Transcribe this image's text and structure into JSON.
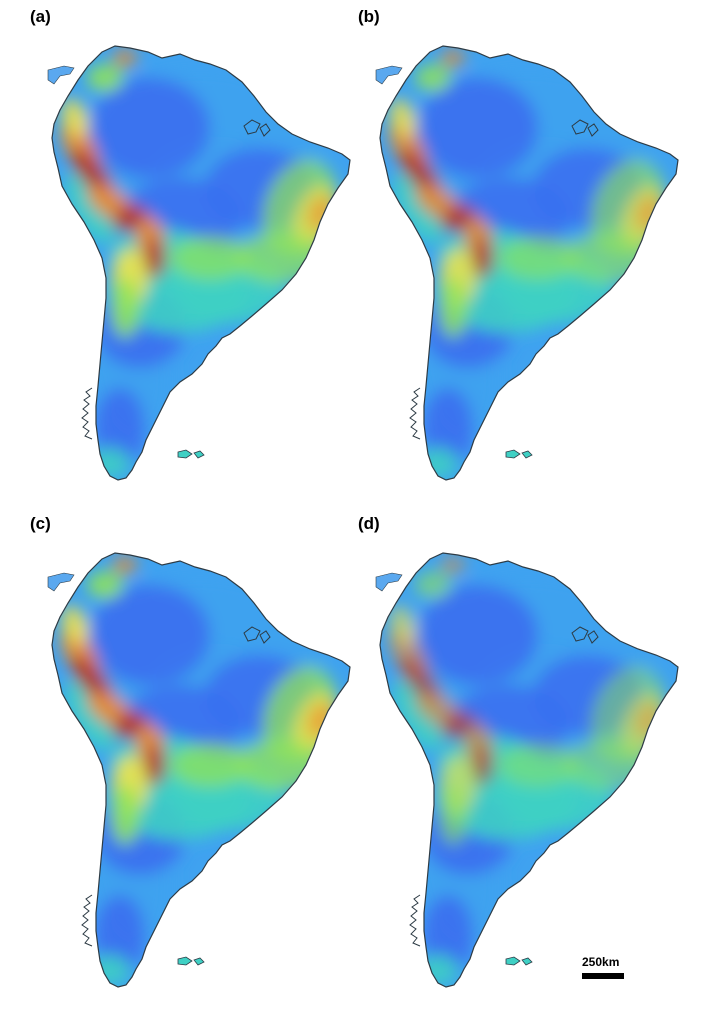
{
  "panels": [
    {
      "label": "(a)",
      "andes_intensity": 1.0,
      "brazil_intensity": 0.85
    },
    {
      "label": "(b)",
      "andes_intensity": 0.95,
      "brazil_intensity": 0.75
    },
    {
      "label": "(c)",
      "andes_intensity": 1.0,
      "brazil_intensity": 0.9
    },
    {
      "label": "(d)",
      "andes_intensity": 0.7,
      "brazil_intensity": 0.6
    }
  ],
  "scale_bar": {
    "label": "250km"
  },
  "colors": {
    "low": "#3a6ff0",
    "low_mid": "#3fa2f0",
    "mid": "#3fd0c4",
    "mid_high": "#8fe35a",
    "high": "#f2e24a",
    "very_high": "#ef8a2a",
    "peak": "#b3301f",
    "coast": "#2d3b45",
    "lake": "#5aa8ef"
  }
}
